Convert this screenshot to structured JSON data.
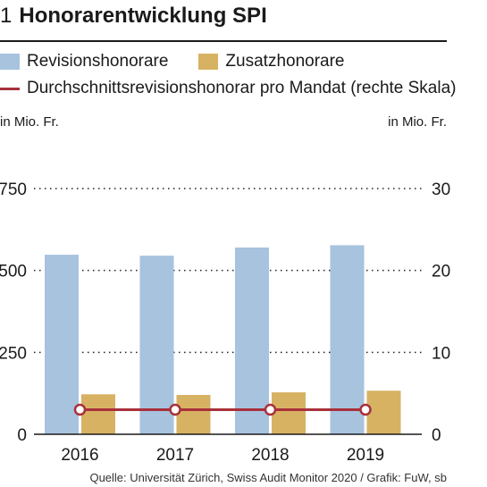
{
  "figure": {
    "number": "1",
    "title": "Honorarentwicklung SPI",
    "source": "Quelle: Universität Zürich, Swiss Audit Monitor 2020 / Grafik: FuW, sb"
  },
  "colors": {
    "revision": "#a7c3de",
    "zusatz": "#d7b263",
    "average": "#a8303a",
    "text": "#1a1a1a"
  },
  "chart_data": {
    "type": "bar",
    "categories": [
      "2016",
      "2017",
      "2018",
      "2019"
    ],
    "series": [
      {
        "name": "Revisionshonorare",
        "kind": "bar",
        "axis": "left",
        "values": [
          548,
          545,
          570,
          577
        ]
      },
      {
        "name": "Zusatzhonorare",
        "kind": "bar",
        "axis": "left",
        "values": [
          122,
          120,
          128,
          133
        ]
      },
      {
        "name": "Durchschnittsrevisionshonorar pro Mandat (rechte Skala)",
        "kind": "line",
        "axis": "right",
        "values": [
          3.0,
          3.0,
          3.0,
          3.0
        ]
      }
    ],
    "ylabel_left": "in Mio. Fr.",
    "ylabel_right": "in Mio. Fr.",
    "ylim_left": [
      0,
      750
    ],
    "ylim_right": [
      0,
      30
    ],
    "yticks_left": [
      "0",
      "250",
      "500",
      "750"
    ],
    "yticks_right": [
      "0",
      "10",
      "20",
      "30"
    ],
    "grid": "dotted",
    "legend_position": "top"
  }
}
